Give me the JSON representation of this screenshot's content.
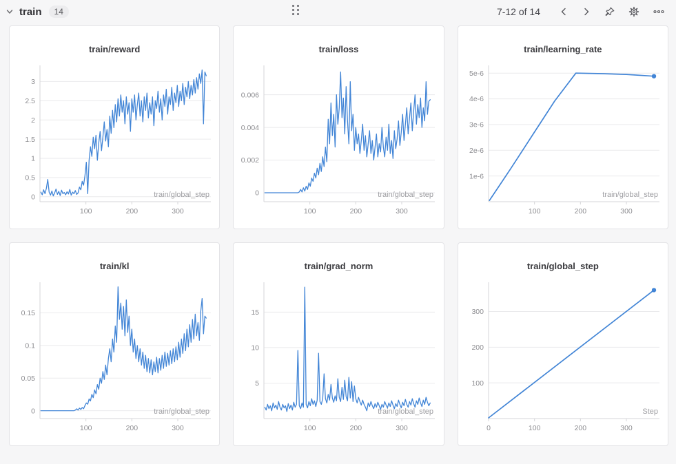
{
  "header": {
    "section_label": "train",
    "section_count": "14",
    "pagination": "7-12 of 14",
    "icons": [
      "chevron-down",
      "drag-handle",
      "chevron-left",
      "chevron-right",
      "pin",
      "gear",
      "ellipsis"
    ]
  },
  "colors": {
    "accent": "#4285d6",
    "grid": "#eaeaec",
    "axis": "#d5d5d8",
    "tick_text": "#8c8c90",
    "label_text": "#9e9ea2"
  },
  "chart_data": [
    {
      "type": "line",
      "title": "train/reward",
      "xlabel": "train/global_step",
      "xlim": [
        0,
        372
      ],
      "ylim": [
        -0.13,
        3.42
      ],
      "xticks": [
        {
          "v": 100,
          "label": "100"
        },
        {
          "v": 200,
          "label": "200"
        },
        {
          "v": 300,
          "label": "300"
        }
      ],
      "yticks": [
        {
          "v": 0,
          "label": "0"
        },
        {
          "v": 0.5,
          "label": "0.5"
        },
        {
          "v": 1,
          "label": "1"
        },
        {
          "v": 1.5,
          "label": "1.5"
        },
        {
          "v": 2,
          "label": "2"
        },
        {
          "v": 2.5,
          "label": "2.5"
        },
        {
          "v": 3,
          "label": "3"
        }
      ],
      "end_marker": false,
      "series": {
        "x0": 2,
        "dx": 3,
        "y": [
          0.12,
          0.05,
          0.18,
          0.08,
          0.22,
          0.45,
          0.12,
          0.04,
          0.15,
          0.02,
          0.1,
          0.2,
          0.06,
          0.14,
          0.03,
          0.17,
          0.08,
          0.11,
          0.05,
          0.13,
          0.07,
          0.19,
          0.04,
          0.12,
          0.08,
          0.16,
          0.06,
          0.1,
          0.25,
          0.18,
          0.4,
          0.3,
          0.55,
          0.9,
          0.08,
          0.95,
          1.3,
          1.05,
          1.55,
          1.25,
          1.6,
          0.95,
          1.4,
          1.7,
          1.2,
          1.55,
          1.95,
          1.45,
          1.75,
          1.3,
          2.1,
          1.65,
          2.25,
          1.8,
          2.4,
          1.95,
          2.55,
          2.1,
          2.65,
          2.2,
          2.5,
          1.9,
          2.6,
          2.15,
          2.45,
          1.7,
          2.55,
          2.2,
          2.65,
          2.0,
          2.4,
          2.7,
          2.1,
          2.5,
          1.95,
          2.6,
          2.25,
          2.7,
          2.05,
          2.45,
          2.15,
          2.6,
          1.85,
          2.5,
          2.3,
          2.75,
          2.2,
          2.55,
          2.0,
          2.65,
          2.35,
          2.8,
          2.15,
          2.6,
          2.4,
          2.85,
          2.25,
          2.7,
          2.45,
          2.9,
          2.35,
          2.75,
          2.5,
          2.95,
          2.4,
          2.85,
          2.6,
          3.0,
          2.55,
          2.9,
          2.65,
          3.05,
          2.7,
          3.1,
          2.8,
          3.2,
          2.95,
          3.3,
          1.9,
          3.25,
          3.15
        ]
      }
    },
    {
      "type": "line",
      "title": "train/loss",
      "xlabel": "train/global_step",
      "xlim": [
        0,
        372
      ],
      "ylim": [
        -0.00055,
        0.0078
      ],
      "xticks": [
        {
          "v": 100,
          "label": "100"
        },
        {
          "v": 200,
          "label": "200"
        },
        {
          "v": 300,
          "label": "300"
        }
      ],
      "yticks": [
        {
          "v": 0,
          "label": "0"
        },
        {
          "v": 0.002,
          "label": "0.002"
        },
        {
          "v": 0.004,
          "label": "0.004"
        },
        {
          "v": 0.006,
          "label": "0.006"
        }
      ],
      "end_marker": false,
      "series": {
        "x0": 2,
        "dx": 3,
        "y": [
          0,
          0,
          0,
          0,
          0,
          0,
          0,
          0,
          0,
          0,
          0,
          0,
          0,
          0,
          0,
          0,
          0,
          0,
          0,
          0,
          0,
          0,
          0,
          0,
          0,
          5e-05,
          0.0002,
          5e-05,
          0.0003,
          0.0001,
          0.0004,
          0.0002,
          0.0006,
          0.0004,
          0.0009,
          0.0007,
          0.0012,
          0.0009,
          0.0015,
          0.0011,
          0.0018,
          0.0013,
          0.0022,
          0.0016,
          0.0028,
          0.0019,
          0.0045,
          0.003,
          0.0055,
          0.0035,
          0.0048,
          0.0028,
          0.006,
          0.0042,
          0.0052,
          0.0074,
          0.0046,
          0.0058,
          0.0036,
          0.0065,
          0.0044,
          0.003,
          0.0068,
          0.0038,
          0.0048,
          0.0026,
          0.004,
          0.003,
          0.0036,
          0.0024,
          0.0032,
          0.0042,
          0.0026,
          0.0035,
          0.0022,
          0.003,
          0.0038,
          0.0024,
          0.0032,
          0.002,
          0.0028,
          0.0036,
          0.0022,
          0.003,
          0.0025,
          0.004,
          0.0028,
          0.0022,
          0.0034,
          0.0026,
          0.0042,
          0.0024,
          0.0032,
          0.0021,
          0.0038,
          0.0027,
          0.0033,
          0.0044,
          0.0029,
          0.0037,
          0.0048,
          0.0032,
          0.0042,
          0.0052,
          0.0036,
          0.0046,
          0.0055,
          0.0038,
          0.005,
          0.006,
          0.0042,
          0.0054,
          0.0046,
          0.0058,
          0.004,
          0.0052,
          0.0044,
          0.0068,
          0.0048,
          0.0056,
          0.0057
        ]
      }
    },
    {
      "type": "line",
      "title": "train/learning_rate",
      "xlabel": "train/global_step",
      "xlim": [
        0,
        372
      ],
      "ylim": [
        0,
        5.3e-06
      ],
      "xticks": [
        {
          "v": 100,
          "label": "100"
        },
        {
          "v": 200,
          "label": "200"
        },
        {
          "v": 300,
          "label": "300"
        }
      ],
      "yticks": [
        {
          "v": 1e-06,
          "label": "1e-6"
        },
        {
          "v": 2e-06,
          "label": "2e-6"
        },
        {
          "v": 3e-06,
          "label": "3e-6"
        },
        {
          "v": 4e-06,
          "label": "4e-6"
        },
        {
          "v": 5e-06,
          "label": "5e-6"
        }
      ],
      "end_marker": true,
      "series": {
        "points": [
          [
            2,
            5e-08
          ],
          [
            48,
            1.28e-06
          ],
          [
            96,
            2.6e-06
          ],
          [
            144,
            3.92e-06
          ],
          [
            190,
            5e-06
          ],
          [
            246,
            4.98e-06
          ],
          [
            300,
            4.95e-06
          ],
          [
            360,
            4.88e-06
          ]
        ]
      }
    },
    {
      "type": "line",
      "title": "train/kl",
      "xlabel": "train/global_step",
      "xlim": [
        0,
        372
      ],
      "ylim": [
        -0.012,
        0.197
      ],
      "xticks": [
        {
          "v": 100,
          "label": "100"
        },
        {
          "v": 200,
          "label": "200"
        },
        {
          "v": 300,
          "label": "300"
        }
      ],
      "yticks": [
        {
          "v": 0,
          "label": "0"
        },
        {
          "v": 0.05,
          "label": "0.05"
        },
        {
          "v": 0.1,
          "label": "0.1"
        },
        {
          "v": 0.15,
          "label": "0.15"
        }
      ],
      "end_marker": false,
      "series": {
        "x0": 2,
        "dx": 3,
        "y": [
          0,
          0,
          0,
          0,
          0,
          0,
          0,
          0,
          0,
          0,
          0,
          0,
          0,
          0,
          0,
          0,
          0,
          0,
          0,
          0,
          0,
          0,
          0,
          0,
          0,
          0.001,
          0.003,
          0.001,
          0.004,
          0.002,
          0.005,
          0.003,
          0.008,
          0.012,
          0.01,
          0.018,
          0.015,
          0.025,
          0.02,
          0.032,
          0.026,
          0.04,
          0.033,
          0.05,
          0.042,
          0.06,
          0.048,
          0.07,
          0.055,
          0.08,
          0.095,
          0.075,
          0.11,
          0.09,
          0.13,
          0.105,
          0.19,
          0.14,
          0.165,
          0.125,
          0.16,
          0.115,
          0.17,
          0.12,
          0.145,
          0.1,
          0.125,
          0.09,
          0.11,
          0.08,
          0.1,
          0.075,
          0.095,
          0.07,
          0.09,
          0.065,
          0.085,
          0.06,
          0.08,
          0.058,
          0.078,
          0.055,
          0.075,
          0.06,
          0.082,
          0.058,
          0.08,
          0.062,
          0.085,
          0.065,
          0.09,
          0.068,
          0.088,
          0.07,
          0.092,
          0.072,
          0.095,
          0.075,
          0.098,
          0.078,
          0.105,
          0.082,
          0.11,
          0.088,
          0.118,
          0.092,
          0.125,
          0.098,
          0.132,
          0.105,
          0.14,
          0.11,
          0.148,
          0.115,
          0.135,
          0.108,
          0.152,
          0.172,
          0.118,
          0.145,
          0.142
        ]
      }
    },
    {
      "type": "line",
      "title": "train/grad_norm",
      "xlabel": "train/global_step",
      "xlim": [
        0,
        372
      ],
      "ylim": [
        0,
        19.2
      ],
      "xticks": [
        {
          "v": 100,
          "label": "100"
        },
        {
          "v": 200,
          "label": "200"
        },
        {
          "v": 300,
          "label": "300"
        }
      ],
      "yticks": [
        {
          "v": 5,
          "label": "5"
        },
        {
          "v": 10,
          "label": "10"
        },
        {
          "v": 15,
          "label": "15"
        }
      ],
      "end_marker": false,
      "series": {
        "x0": 2,
        "dx": 3,
        "y": [
          1.6,
          1.2,
          2.0,
          1.4,
          1.8,
          1.1,
          2.2,
          1.5,
          1.9,
          1.3,
          2.4,
          1.6,
          1.2,
          2.0,
          1.5,
          1.8,
          1.0,
          2.1,
          1.4,
          1.9,
          1.2,
          2.3,
          1.6,
          2.0,
          9.6,
          1.8,
          1.4,
          2.2,
          1.6,
          18.5,
          2.0,
          1.5,
          2.4,
          1.8,
          2.8,
          2.0,
          2.5,
          1.7,
          2.6,
          9.2,
          2.4,
          2.0,
          2.8,
          6.3,
          2.8,
          2.2,
          3.4,
          2.6,
          4.8,
          2.9,
          2.3,
          3.2,
          2.5,
          5.6,
          3.0,
          2.4,
          4.4,
          2.7,
          5.4,
          3.1,
          2.5,
          5.8,
          2.9,
          5.2,
          2.4,
          4.6,
          2.8,
          2.2,
          3.0,
          2.4,
          1.9,
          2.6,
          2.0,
          1.6,
          1.1,
          2.2,
          1.7,
          2.4,
          1.8,
          1.4,
          2.1,
          1.6,
          2.3,
          1.8,
          1.3,
          2.0,
          1.6,
          2.4,
          1.9,
          1.5,
          2.2,
          1.7,
          2.5,
          1.9,
          1.4,
          2.1,
          1.7,
          2.6,
          2.0,
          1.5,
          2.3,
          1.8,
          2.7,
          2.0,
          1.6,
          2.4,
          1.9,
          2.8,
          2.1,
          1.6,
          2.5,
          2.0,
          2.9,
          2.2,
          1.7,
          2.6,
          2.0,
          3.0,
          2.3,
          1.8,
          2.2
        ]
      }
    },
    {
      "type": "line",
      "title": "train/global_step",
      "xlabel": "Step",
      "xlim": [
        0,
        372
      ],
      "ylim": [
        0,
        382
      ],
      "xticks": [
        {
          "v": 0,
          "label": "0"
        },
        {
          "v": 100,
          "label": "100"
        },
        {
          "v": 200,
          "label": "200"
        },
        {
          "v": 300,
          "label": "300"
        }
      ],
      "yticks": [
        {
          "v": 100,
          "label": "100"
        },
        {
          "v": 200,
          "label": "200"
        },
        {
          "v": 300,
          "label": "300"
        }
      ],
      "end_marker": true,
      "series": {
        "points": [
          [
            0,
            2
          ],
          [
            360,
            360
          ]
        ]
      }
    }
  ]
}
